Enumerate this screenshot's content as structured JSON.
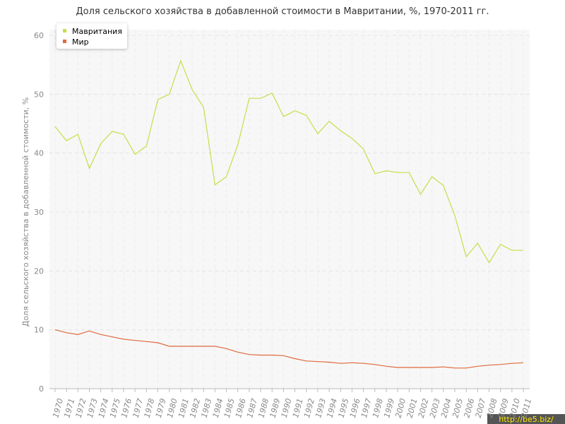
{
  "chart_data": {
    "type": "line",
    "title": "Доля сельского хозяйства в добавленной стоимости в Мавритании, %, 1970-2011 гг.",
    "y_label": "Доля сельского хозяйства в добавленной стоимости, %",
    "categories": [
      "1970",
      "1971",
      "1972",
      "1973",
      "1974",
      "1975",
      "1976",
      "1977",
      "1978",
      "1979",
      "1980",
      "1981",
      "1982",
      "1983",
      "1984",
      "1985",
      "1986",
      "1987",
      "1988",
      "1989",
      "1990",
      "1991",
      "1992",
      "1993",
      "1994",
      "1995",
      "1996",
      "1997",
      "1998",
      "1999",
      "2000",
      "2001",
      "2002",
      "2003",
      "2004",
      "2005",
      "2006",
      "2007",
      "2008",
      "2009",
      "2010",
      "2011"
    ],
    "series": [
      {
        "name": "Мавритания",
        "color": "#c5de4a",
        "values": [
          44.5,
          42.1,
          43.2,
          37.4,
          41.6,
          43.7,
          43.2,
          39.8,
          41.2,
          49.1,
          50.0,
          55.7,
          50.8,
          47.8,
          34.6,
          36.0,
          41.4,
          49.3,
          49.3,
          50.2,
          46.2,
          47.2,
          46.4,
          43.3,
          45.4,
          43.8,
          42.5,
          40.7,
          36.5,
          37.0,
          36.7,
          36.7,
          33.0,
          36.0,
          34.5,
          29.4,
          22.4,
          24.7,
          21.4,
          24.5,
          23.5,
          23.5
        ]
      },
      {
        "name": "Мир",
        "color": "#e06a3c",
        "values": [
          10.0,
          9.5,
          9.2,
          9.8,
          9.2,
          8.8,
          8.4,
          8.2,
          8.0,
          7.8,
          7.2,
          7.2,
          7.2,
          7.2,
          7.2,
          6.8,
          6.2,
          5.8,
          5.7,
          5.7,
          5.6,
          5.1,
          4.7,
          4.6,
          4.5,
          4.3,
          4.4,
          4.3,
          4.1,
          3.8,
          3.6,
          3.6,
          3.6,
          3.6,
          3.7,
          3.5,
          3.5,
          3.8,
          4.0,
          4.1,
          4.3,
          4.4
        ]
      }
    ],
    "ylim": [
      0,
      60
    ],
    "yticks": [
      0,
      10,
      20,
      30,
      40,
      50,
      60
    ],
    "grid": true,
    "legend": "top-left",
    "watermark": "http://be5.biz/"
  }
}
